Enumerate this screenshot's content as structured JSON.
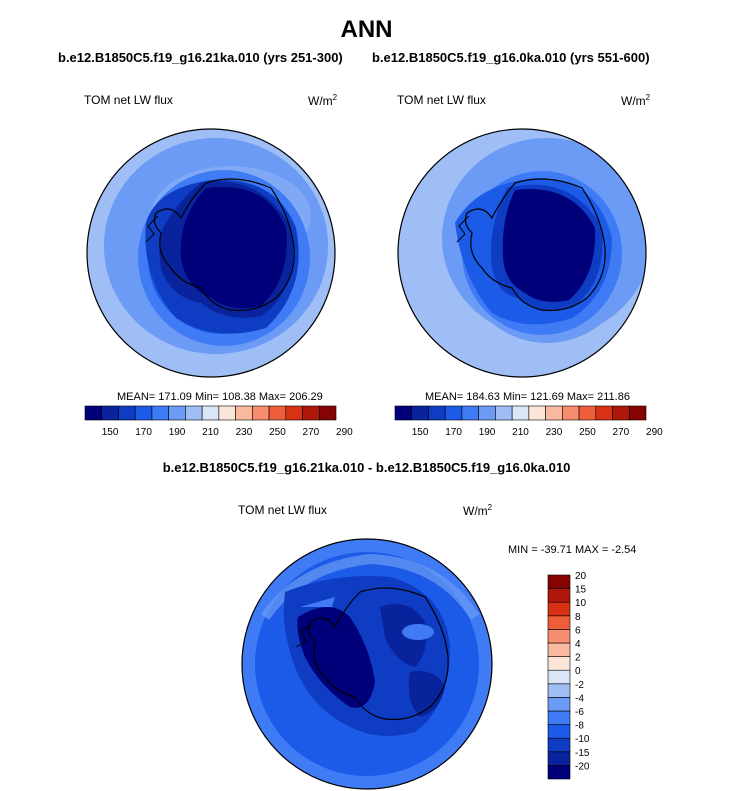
{
  "header": {
    "title": "ANN",
    "case_left": "b.e12.B1850C5.f19_g16.21ka.010 (yrs 251-300)",
    "case_right": "b.e12.B1850C5.f19_g16.0ka.010 (yrs 551-600)",
    "diff_title": "b.e12.B1850C5.f19_g16.21ka.010 - b.e12.B1850C5.f19_g16.0ka.010"
  },
  "panels": {
    "left": {
      "variable": "TOM net LW flux",
      "units_base": "W/m",
      "units_exp": "2",
      "stats": "MEAN= 171.09  Min= 108.38  Max= 206.29"
    },
    "right": {
      "variable": "TOM net LW flux",
      "units_base": "W/m",
      "units_exp": "2",
      "stats": "MEAN= 184.63  Min= 121.69  Max= 211.86"
    },
    "diff": {
      "variable": "TOM net LW flux",
      "units_base": "W/m",
      "units_exp": "2",
      "stats": "MIN = -39.71 MAX =  -2.54"
    }
  },
  "colorbar_abs": {
    "colors": [
      "#00007a",
      "#08239c",
      "#0e3dc4",
      "#1c5ae8",
      "#3e7bf5",
      "#6c9bf5",
      "#9ebef5",
      "#d8e6f8",
      "#fbe4d8",
      "#f8b99e",
      "#f58d6e",
      "#ef5e3a",
      "#d83214",
      "#b0170b",
      "#860303"
    ],
    "labels": [
      "150",
      "170",
      "190",
      "210",
      "230",
      "250",
      "270",
      "290"
    ]
  },
  "colorbar_diff": {
    "colors": [
      "#00007a",
      "#08239c",
      "#0e3dc4",
      "#1c5ae8",
      "#3e7bf5",
      "#6c9bf5",
      "#9ebef5",
      "#d8e6f8",
      "#fbe4d8",
      "#f8b99e",
      "#f58d6e",
      "#ef5e3a",
      "#d83214",
      "#b0170b",
      "#860303"
    ],
    "labels": [
      "-20",
      "-15",
      "-10",
      "-8",
      "-6",
      "-4",
      "-2",
      "0",
      "2",
      "4",
      "6",
      "8",
      "10",
      "15",
      "20"
    ]
  }
}
